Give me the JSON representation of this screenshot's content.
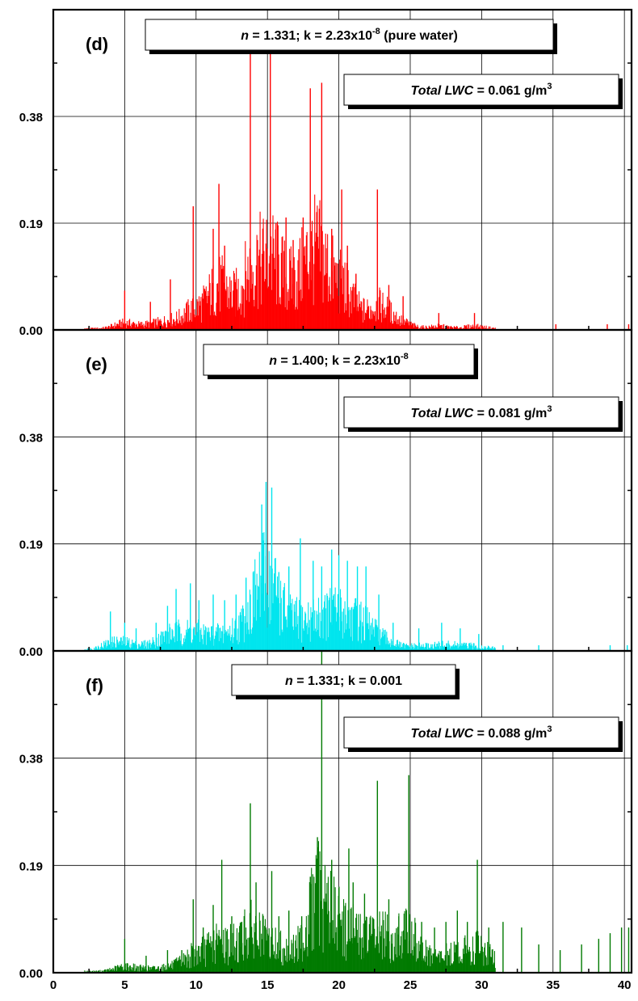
{
  "chart_data": [
    {
      "type": "bar",
      "panel_label": "(d)",
      "annotation_params": {
        "n_symbol": "n",
        "text": " = 1.331; k = 2.23x10",
        "exponent": "-8",
        "suffix": " (pure water)"
      },
      "annotation_lwc": {
        "italic": "Total LWC",
        "text": " = 0.061 g/m",
        "exponent": "3"
      },
      "color": "#ff0000",
      "xlim": [
        0,
        40.5
      ],
      "ylim": [
        0,
        0.57
      ],
      "yticks": [
        "0.00",
        "0.19",
        "0.38"
      ],
      "xticks": [],
      "peaks": [
        [
          5.0,
          0.07
        ],
        [
          6.8,
          0.05
        ],
        [
          8.2,
          0.09
        ],
        [
          9.8,
          0.22
        ],
        [
          11.2,
          0.18
        ],
        [
          11.6,
          0.26
        ],
        [
          12.0,
          0.15
        ],
        [
          12.8,
          0.09
        ],
        [
          13.8,
          0.55
        ],
        [
          14.3,
          0.16
        ],
        [
          15.2,
          0.55
        ],
        [
          15.6,
          0.19
        ],
        [
          16.3,
          0.2
        ],
        [
          16.8,
          0.16
        ],
        [
          17.5,
          0.2
        ],
        [
          18.0,
          0.43
        ],
        [
          18.5,
          0.13
        ],
        [
          18.8,
          0.44
        ],
        [
          19.5,
          0.18
        ],
        [
          20.2,
          0.25
        ],
        [
          20.6,
          0.15
        ],
        [
          21.2,
          0.1
        ],
        [
          22.7,
          0.25
        ],
        [
          23.5,
          0.08
        ],
        [
          24.5,
          0.06
        ],
        [
          27.0,
          0.03
        ],
        [
          29.5,
          0.03
        ],
        [
          35.2,
          0.01
        ],
        [
          38.8,
          0.01
        ],
        [
          40.3,
          0.01
        ]
      ]
    },
    {
      "type": "bar",
      "panel_label": "(e)",
      "annotation_params": {
        "n_symbol": "n",
        "text": " = 1.400; k = 2.23x10",
        "exponent": "-8",
        "suffix": ""
      },
      "annotation_lwc": {
        "italic": "Total LWC",
        "text": " = 0.081 g/m",
        "exponent": "3"
      },
      "color": "#00e5ee",
      "xlim": [
        0,
        40.5
      ],
      "ylim": [
        0,
        0.57
      ],
      "yticks": [
        "0.00",
        "0.19",
        "0.38"
      ],
      "xticks": [],
      "peaks": [
        [
          4.0,
          0.07
        ],
        [
          5.0,
          0.05
        ],
        [
          5.8,
          0.04
        ],
        [
          7.2,
          0.05
        ],
        [
          8.0,
          0.08
        ],
        [
          8.6,
          0.11
        ],
        [
          9.6,
          0.12
        ],
        [
          10.2,
          0.09
        ],
        [
          11.2,
          0.1
        ],
        [
          12.0,
          0.09
        ],
        [
          12.8,
          0.1
        ],
        [
          13.5,
          0.13
        ],
        [
          14.0,
          0.14
        ],
        [
          14.6,
          0.26
        ],
        [
          14.9,
          0.3
        ],
        [
          15.3,
          0.29
        ],
        [
          15.8,
          0.14
        ],
        [
          16.5,
          0.15
        ],
        [
          17.3,
          0.2
        ],
        [
          18.2,
          0.16
        ],
        [
          18.8,
          0.15
        ],
        [
          19.5,
          0.18
        ],
        [
          20.0,
          0.17
        ],
        [
          20.6,
          0.16
        ],
        [
          21.3,
          0.15
        ],
        [
          21.9,
          0.15
        ],
        [
          22.8,
          0.1
        ],
        [
          23.8,
          0.05
        ],
        [
          25.6,
          0.04
        ],
        [
          27.2,
          0.05
        ],
        [
          28.5,
          0.04
        ],
        [
          29.8,
          0.03
        ],
        [
          31.5,
          0.01
        ],
        [
          34.0,
          0.01
        ],
        [
          39.0,
          0.01
        ],
        [
          40.2,
          0.01
        ]
      ]
    },
    {
      "type": "bar",
      "panel_label": "(f)",
      "annotation_params": {
        "n_symbol": "n",
        "text": " = 1.331; k = 0.001",
        "exponent": "",
        "suffix": ""
      },
      "annotation_lwc": {
        "italic": "Total LWC",
        "text": " = 0.088 g/m",
        "exponent": "3"
      },
      "color": "#007a00",
      "xlim": [
        0,
        40.5
      ],
      "ylim": [
        0,
        0.57
      ],
      "yticks": [
        "0.00",
        "0.19",
        "0.38"
      ],
      "xticks": [
        "0",
        "5",
        "10",
        "15",
        "20",
        "25",
        "30",
        "35",
        "40"
      ],
      "peaks": [
        [
          5.0,
          0.06
        ],
        [
          6.5,
          0.03
        ],
        [
          8.0,
          0.04
        ],
        [
          9.0,
          0.04
        ],
        [
          9.8,
          0.13
        ],
        [
          10.5,
          0.08
        ],
        [
          11.2,
          0.12
        ],
        [
          11.8,
          0.2
        ],
        [
          12.5,
          0.1
        ],
        [
          13.2,
          0.09
        ],
        [
          13.8,
          0.3
        ],
        [
          14.2,
          0.16
        ],
        [
          15.3,
          0.18
        ],
        [
          15.8,
          0.1
        ],
        [
          16.5,
          0.11
        ],
        [
          17.4,
          0.1
        ],
        [
          18.0,
          0.17
        ],
        [
          18.5,
          0.24
        ],
        [
          18.8,
          0.57
        ],
        [
          19.5,
          0.2
        ],
        [
          20.0,
          0.15
        ],
        [
          20.7,
          0.22
        ],
        [
          21.0,
          0.16
        ],
        [
          21.8,
          0.14
        ],
        [
          22.7,
          0.34
        ],
        [
          23.5,
          0.13
        ],
        [
          24.2,
          0.1
        ],
        [
          24.9,
          0.35
        ],
        [
          25.8,
          0.09
        ],
        [
          26.7,
          0.08
        ],
        [
          27.5,
          0.09
        ],
        [
          28.3,
          0.11
        ],
        [
          29.0,
          0.09
        ],
        [
          29.7,
          0.2
        ],
        [
          30.5,
          0.08
        ],
        [
          31.5,
          0.09
        ],
        [
          32.8,
          0.08
        ],
        [
          34.0,
          0.05
        ],
        [
          35.5,
          0.04
        ],
        [
          37.0,
          0.05
        ],
        [
          38.2,
          0.06
        ],
        [
          39.0,
          0.07
        ],
        [
          39.8,
          0.08
        ],
        [
          40.3,
          0.08
        ]
      ]
    }
  ]
}
